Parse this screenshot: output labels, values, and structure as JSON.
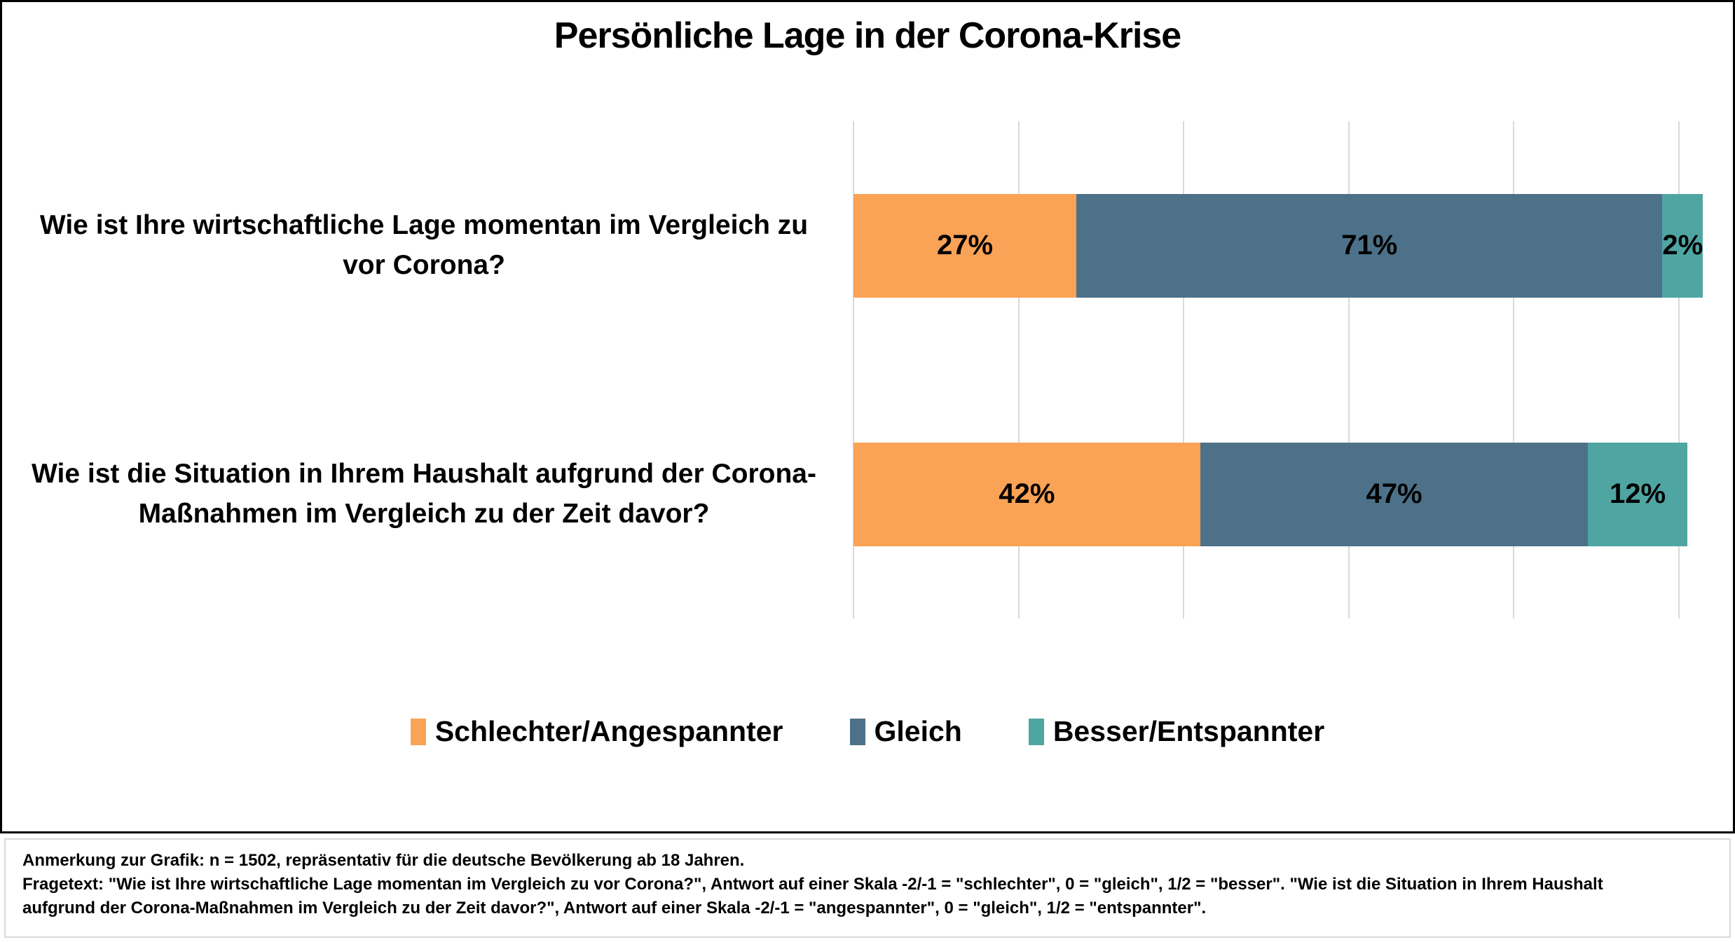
{
  "title": "Persönliche Lage in der Corona-Krise",
  "chart_data": {
    "type": "bar",
    "orientation": "horizontal",
    "stacked": true,
    "title": "Persönliche Lage in der Corona-Krise",
    "categories": [
      "Wie ist Ihre wirtschaftliche Lage momentan im Vergleich zu\nvor Corona?",
      "Wie ist die Situation in Ihrem Haushalt aufgrund der Corona-\nMaßnahmen im Vergleich zu der Zeit davor?"
    ],
    "series": [
      {
        "name": "Schlechter/Angespannter",
        "color": "#FAA255",
        "values": [
          27,
          42
        ]
      },
      {
        "name": "Gleich",
        "color": "#4D7189",
        "values": [
          71,
          47
        ]
      },
      {
        "name": "Besser/Entspannter",
        "color": "#4FA5A2",
        "values": [
          2,
          12
        ]
      }
    ],
    "value_labels": [
      [
        "27%",
        "71%",
        "2%"
      ],
      [
        "42%",
        "47%",
        "12%"
      ]
    ],
    "xlim": [
      0,
      100
    ],
    "gridline_interval": 20,
    "grid": true,
    "gridline_color": "#D9D9D9",
    "legend_position": "bottom"
  },
  "footnote": {
    "lines": [
      "Anmerkung zur Grafik: n = 1502, repräsentativ für die deutsche Bevölkerung ab 18 Jahren.",
      "Fragetext: \"Wie ist Ihre wirtschaftliche Lage momentan im Vergleich zu vor Corona?\", Antwort auf einer Skala  -2/-1 = \"schlechter\", 0 = \"gleich\", 1/2 = \"besser\".  \"Wie ist die Situation in Ihrem Haushalt",
      "aufgrund der Corona-Maßnahmen  im Vergleich zu der Zeit davor?\", Antwort auf einer Skala  -2/-1  = \"angespannter\", 0 = \"gleich\", 1/2 = \"entspannter\"."
    ]
  }
}
